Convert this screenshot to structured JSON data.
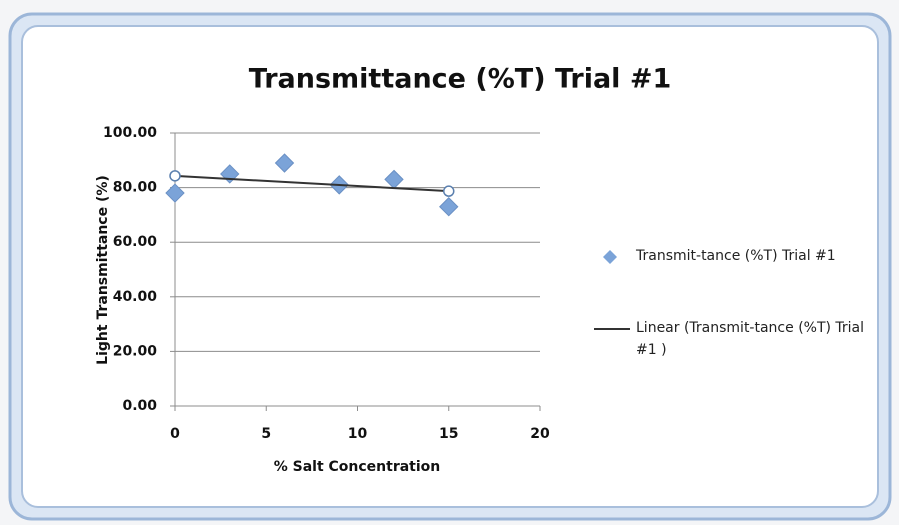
{
  "chart_data": {
    "type": "scatter",
    "title": "Transmittance (%T) Trial #1",
    "xlabel": "% Salt Concentration",
    "ylabel": "Light Transmittance (%)",
    "series": [
      {
        "name": "Transmit-tance (%T) Trial #1",
        "color": "#7ba3d8",
        "marker": "diamond",
        "x": [
          0,
          3,
          6,
          9,
          12,
          15
        ],
        "values": [
          78,
          85,
          89,
          81,
          83,
          73
        ]
      },
      {
        "name": "Linear (Transmit-tance (%T) Trial #1 )",
        "color": "#333333",
        "marker": "line",
        "x": [
          0,
          15
        ],
        "values": [
          84.3,
          78.7
        ]
      }
    ],
    "xlim": [
      0,
      20
    ],
    "xticks": [
      0,
      5,
      10,
      15,
      20
    ],
    "ylim": [
      0,
      100
    ],
    "yticks": [
      {
        "value": 0,
        "label": "0.00"
      },
      {
        "value": 20,
        "label": "20.00"
      },
      {
        "value": 40,
        "label": "40.00"
      },
      {
        "value": 60,
        "label": "60.00"
      },
      {
        "value": 80,
        "label": "80.00"
      },
      {
        "value": 100,
        "label": "100.00"
      }
    ],
    "grid": true,
    "legend": "right"
  }
}
